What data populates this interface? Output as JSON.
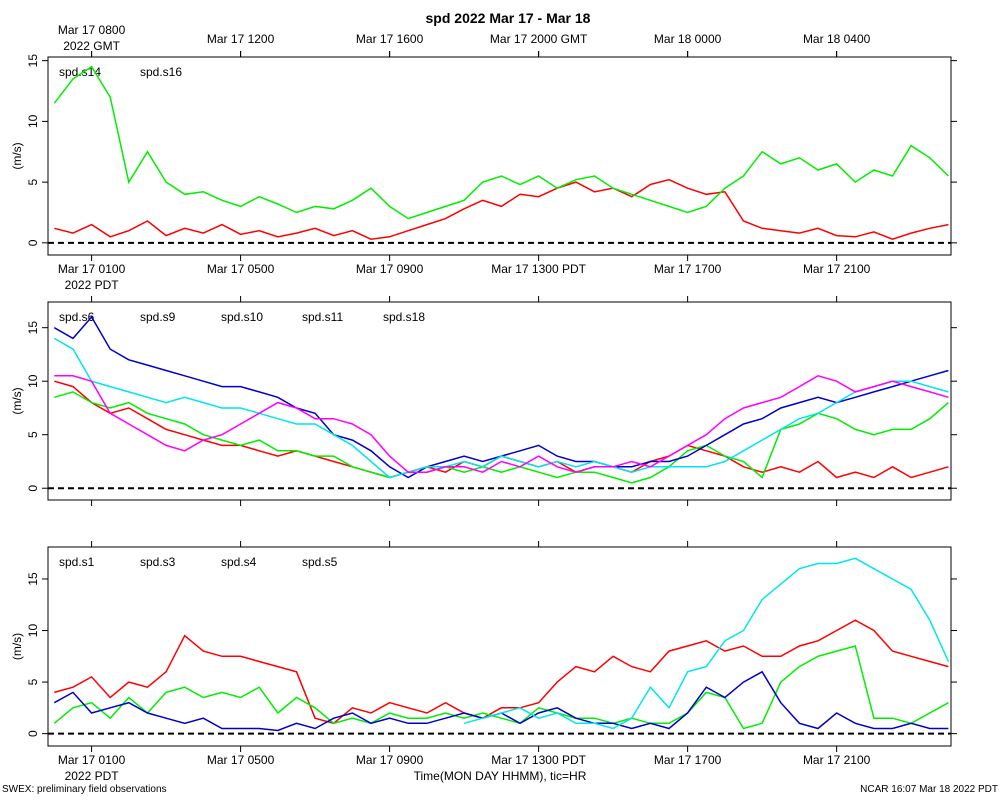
{
  "title": "spd 2022 Mar 17 - Mar 18",
  "footer_left": "SWEX: preliminary field observations",
  "footer_right": "NCAR 16:07 Mar 18 2022 PDT",
  "chart_data": [
    {
      "type": "line",
      "ylabel": "(m/s)",
      "zero_line": true,
      "x2label_sub": "2022 GMT",
      "xlabel_sub": "2022 PDT",
      "x": [
        0,
        0.5,
        1,
        1.5,
        2,
        2.5,
        3,
        3.5,
        4,
        4.5,
        5,
        5.5,
        6,
        6.5,
        7,
        7.5,
        8,
        8.5,
        9,
        9.5,
        10,
        10.5,
        11,
        11.5,
        12,
        12.5,
        13,
        13.5,
        14,
        14.5,
        15,
        15.5,
        16,
        16.5,
        17,
        17.5,
        18,
        18.5,
        19,
        19.5,
        20,
        20.5,
        21,
        21.5,
        22,
        22.5,
        23,
        23.5,
        24
      ],
      "xlim": [
        -0.17,
        24.07
      ],
      "ylim": [
        -1,
        15.3
      ],
      "yticks": [
        0,
        5,
        10,
        15
      ],
      "xticks": [
        {
          "value": 1,
          "label": "Mar 17 0100"
        },
        {
          "value": 5,
          "label": "Mar 17 0500"
        },
        {
          "value": 9,
          "label": "Mar 17 0900"
        },
        {
          "value": 13,
          "label": "Mar 17 1300 PDT"
        },
        {
          "value": 17,
          "label": "Mar 17 1700"
        },
        {
          "value": 21,
          "label": "Mar 17 2100"
        }
      ],
      "x2ticks": [
        {
          "value": 1,
          "label": "Mar 17 0800"
        },
        {
          "value": 5,
          "label": "Mar 17 1200"
        },
        {
          "value": 9,
          "label": "Mar 17 1600"
        },
        {
          "value": 13,
          "label": "Mar 17 2000 GMT"
        },
        {
          "value": 17,
          "label": "Mar 18 0000"
        },
        {
          "value": 21,
          "label": "Mar 18 0400"
        }
      ],
      "series": [
        {
          "name": "spd.s14",
          "color": "#ff0000",
          "values": [
            1.2,
            0.8,
            1.5,
            0.5,
            1.0,
            1.8,
            0.6,
            1.2,
            0.8,
            1.5,
            0.7,
            1.0,
            0.5,
            0.8,
            1.2,
            0.6,
            1.0,
            0.3,
            0.5,
            1.0,
            1.5,
            2.0,
            2.8,
            3.5,
            3.0,
            4.0,
            3.8,
            4.5,
            5.0,
            4.2,
            4.5,
            3.8,
            4.8,
            5.2,
            4.5,
            4.0,
            4.2,
            1.8,
            1.2,
            1.0,
            0.8,
            1.2,
            0.6,
            0.5,
            0.9,
            0.3,
            0.8,
            1.2,
            1.5
          ]
        },
        {
          "name": "spd.s16",
          "color": "#00ee00",
          "values": [
            11.5,
            13.5,
            14.5,
            12.0,
            5.0,
            7.5,
            5.0,
            4.0,
            4.2,
            3.5,
            3.0,
            3.8,
            3.2,
            2.5,
            3.0,
            2.8,
            3.5,
            4.5,
            3.0,
            2.0,
            2.5,
            3.0,
            3.5,
            5.0,
            5.5,
            4.8,
            5.5,
            4.5,
            5.2,
            5.5,
            4.5,
            4.0,
            3.5,
            3.0,
            2.5,
            3.0,
            4.5,
            5.5,
            7.5,
            6.5,
            7.0,
            6.0,
            6.5,
            5.0,
            6.0,
            5.5,
            8.0,
            7.0,
            5.5
          ]
        }
      ]
    },
    {
      "type": "line",
      "ylabel": "(m/s)",
      "zero_line": true,
      "x": [
        0,
        0.5,
        1,
        1.5,
        2,
        2.5,
        3,
        3.5,
        4,
        4.5,
        5,
        5.5,
        6,
        6.5,
        7,
        7.5,
        8,
        8.5,
        9,
        9.5,
        10,
        10.5,
        11,
        11.5,
        12,
        12.5,
        13,
        13.5,
        14,
        14.5,
        15,
        15.5,
        16,
        16.5,
        17,
        17.5,
        18,
        18.5,
        19,
        19.5,
        20,
        20.5,
        21,
        21.5,
        22,
        22.5,
        23,
        23.5,
        24
      ],
      "xlim": [
        -0.17,
        24.07
      ],
      "ylim": [
        -1.1,
        17.4
      ],
      "yticks": [
        0,
        5,
        10,
        15
      ],
      "xticks": [
        1,
        5,
        9,
        13,
        17,
        21
      ],
      "series": [
        {
          "name": "spd.s6",
          "color": "#ff0000",
          "values": [
            10,
            9.5,
            8,
            7,
            7.5,
            6.5,
            5.5,
            5,
            4.5,
            4,
            4,
            3.5,
            3,
            3.5,
            3,
            2.5,
            2,
            1.5,
            1,
            1.5,
            2,
            1.5,
            2.5,
            2,
            3,
            2.5,
            2,
            2.5,
            1.5,
            2,
            2,
            1.5,
            2.5,
            3,
            4,
            3.5,
            3,
            2,
            1.5,
            2,
            1.5,
            2.5,
            1,
            1.5,
            1,
            2,
            1,
            1.5,
            2
          ]
        },
        {
          "name": "spd.s9",
          "color": "#00ee00",
          "values": [
            8.5,
            9,
            8,
            7.5,
            8,
            7,
            6.5,
            6,
            5,
            4.5,
            4,
            4.5,
            3.5,
            3.5,
            3,
            3,
            2,
            1.5,
            1,
            1.5,
            1.5,
            2,
            1.5,
            2,
            1.5,
            2,
            1.5,
            1,
            1.5,
            1.5,
            1,
            0.5,
            1,
            2,
            3.5,
            4,
            3,
            2.5,
            1,
            5.5,
            6,
            7,
            6.5,
            5.5,
            5,
            5.5,
            5.5,
            6.5,
            8
          ]
        },
        {
          "name": "spd.s10",
          "color": "#0000cc",
          "values": [
            15,
            14,
            16,
            13,
            12,
            11.5,
            11,
            10.5,
            10,
            9.5,
            9.5,
            9,
            8.5,
            7.5,
            7,
            5,
            4.5,
            3.5,
            2,
            1,
            2,
            2.5,
            3,
            2.5,
            3,
            3.5,
            4,
            3,
            2.5,
            2.5,
            2,
            2,
            2.5,
            2.5,
            3,
            4,
            5,
            6,
            6.5,
            7.5,
            8,
            8.5,
            8,
            8.5,
            9,
            9.5,
            10,
            10.5,
            11
          ]
        },
        {
          "name": "spd.s11",
          "color": "#00e5ee",
          "values": [
            14,
            13,
            10,
            9.5,
            9,
            8.5,
            8,
            8.5,
            8,
            7.5,
            7.5,
            7,
            6.5,
            6,
            6,
            5,
            4,
            2.5,
            1,
            1.5,
            2,
            2,
            2.5,
            2,
            3,
            2.5,
            2,
            2.5,
            2,
            2.5,
            2,
            1.5,
            2,
            2,
            2,
            2,
            2.5,
            3.5,
            4.5,
            5.5,
            6.5,
            7,
            8,
            9,
            9.5,
            10,
            10,
            9.5,
            9
          ]
        },
        {
          "name": "spd.s18",
          "color": "#ff00ff",
          "values": [
            10.5,
            10.5,
            10,
            7,
            6,
            5,
            4,
            3.5,
            4.5,
            5,
            6,
            7,
            8,
            7.5,
            6.5,
            6.5,
            6,
            5,
            3,
            1.5,
            1.5,
            2,
            2,
            1.5,
            2.5,
            2,
            3,
            2,
            1.5,
            2,
            2,
            2.5,
            2,
            3,
            4,
            5,
            6.5,
            7.5,
            8,
            8.5,
            9.5,
            10.5,
            10,
            9,
            9.5,
            10,
            9.5,
            9,
            8.5
          ]
        }
      ]
    },
    {
      "type": "line",
      "ylabel": "(m/s)",
      "zero_line": true,
      "xlabel_sub": "2022 PDT",
      "xlabel": "Time(MON DAY HHMM), tic=HR",
      "x": [
        0,
        0.5,
        1,
        1.5,
        2,
        2.5,
        3,
        3.5,
        4,
        4.5,
        5,
        5.5,
        6,
        6.5,
        7,
        7.5,
        8,
        8.5,
        9,
        9.5,
        10,
        10.5,
        11,
        11.5,
        12,
        12.5,
        13,
        13.5,
        14,
        14.5,
        15,
        15.5,
        16,
        16.5,
        17,
        17.5,
        18,
        18.5,
        19,
        19.5,
        20,
        20.5,
        21,
        21.5,
        22,
        22.5,
        23,
        23.5,
        24
      ],
      "xlim": [
        -0.17,
        24.07
      ],
      "ylim": [
        -1.2,
        18.1
      ],
      "yticks": [
        0,
        5,
        10,
        15
      ],
      "xticks": [
        {
          "value": 1,
          "label": "Mar 17 0100"
        },
        {
          "value": 5,
          "label": "Mar 17 0500"
        },
        {
          "value": 9,
          "label": "Mar 17 0900"
        },
        {
          "value": 13,
          "label": "Mar 17 1300 PDT"
        },
        {
          "value": 17,
          "label": "Mar 17 1700"
        },
        {
          "value": 21,
          "label": "Mar 17 2100"
        }
      ],
      "series": [
        {
          "name": "spd.s1",
          "color": "#ff0000",
          "values": [
            4,
            4.5,
            5.5,
            3.5,
            5,
            4.5,
            6,
            9.5,
            8,
            7.5,
            7.5,
            7,
            6.5,
            6,
            1.5,
            1,
            2.5,
            2,
            3,
            2.5,
            2,
            3,
            2,
            1.5,
            2.5,
            2.5,
            3,
            5,
            6.5,
            6,
            7.5,
            6.5,
            6,
            8,
            8.5,
            9,
            8,
            8.5,
            7.5,
            7.5,
            8.5,
            9,
            10,
            11,
            10,
            8,
            7.5,
            7,
            6.5
          ]
        },
        {
          "name": "spd.s3",
          "color": "#00ee00",
          "values": [
            1,
            2.5,
            3,
            1.5,
            3.5,
            2,
            4,
            4.5,
            3.5,
            4,
            3.5,
            4.5,
            2,
            3.5,
            2.5,
            1,
            1.5,
            1,
            2,
            1.5,
            1.5,
            2,
            1.5,
            2,
            1.5,
            1,
            2.5,
            2,
            1.5,
            1.5,
            1,
            1.5,
            1,
            1,
            2,
            4,
            3.5,
            0.5,
            1,
            5,
            6.5,
            7.5,
            8,
            8.5,
            1.5,
            1.5,
            1,
            2,
            3
          ]
        },
        {
          "name": "spd.s4",
          "color": "#0000cc",
          "values": [
            3,
            4,
            2,
            2.5,
            3,
            2,
            1.5,
            1,
            1.5,
            0.5,
            0.5,
            0.5,
            0.3,
            1,
            0.5,
            1.5,
            2,
            1,
            1.5,
            1,
            1,
            1.5,
            2,
            1.5,
            2,
            1,
            2,
            2.5,
            1.5,
            1,
            1,
            0.5,
            1,
            0.5,
            2,
            4.5,
            3.5,
            5,
            6,
            3,
            1,
            0.5,
            2,
            1,
            0.5,
            0.5,
            1,
            0.5,
            0.5
          ]
        },
        {
          "name": "spd.s5",
          "color": "#00e5ee",
          "values": [
            null,
            null,
            null,
            null,
            null,
            null,
            null,
            null,
            null,
            null,
            null,
            null,
            null,
            null,
            null,
            null,
            null,
            null,
            null,
            null,
            null,
            null,
            1,
            1.5,
            2,
            2.5,
            1.5,
            2,
            1,
            1,
            0.5,
            1.5,
            4.5,
            2.5,
            6,
            6.5,
            9,
            10,
            13,
            14.5,
            16,
            16.5,
            16.5,
            17,
            16,
            15,
            14,
            11,
            7
          ]
        }
      ]
    }
  ]
}
